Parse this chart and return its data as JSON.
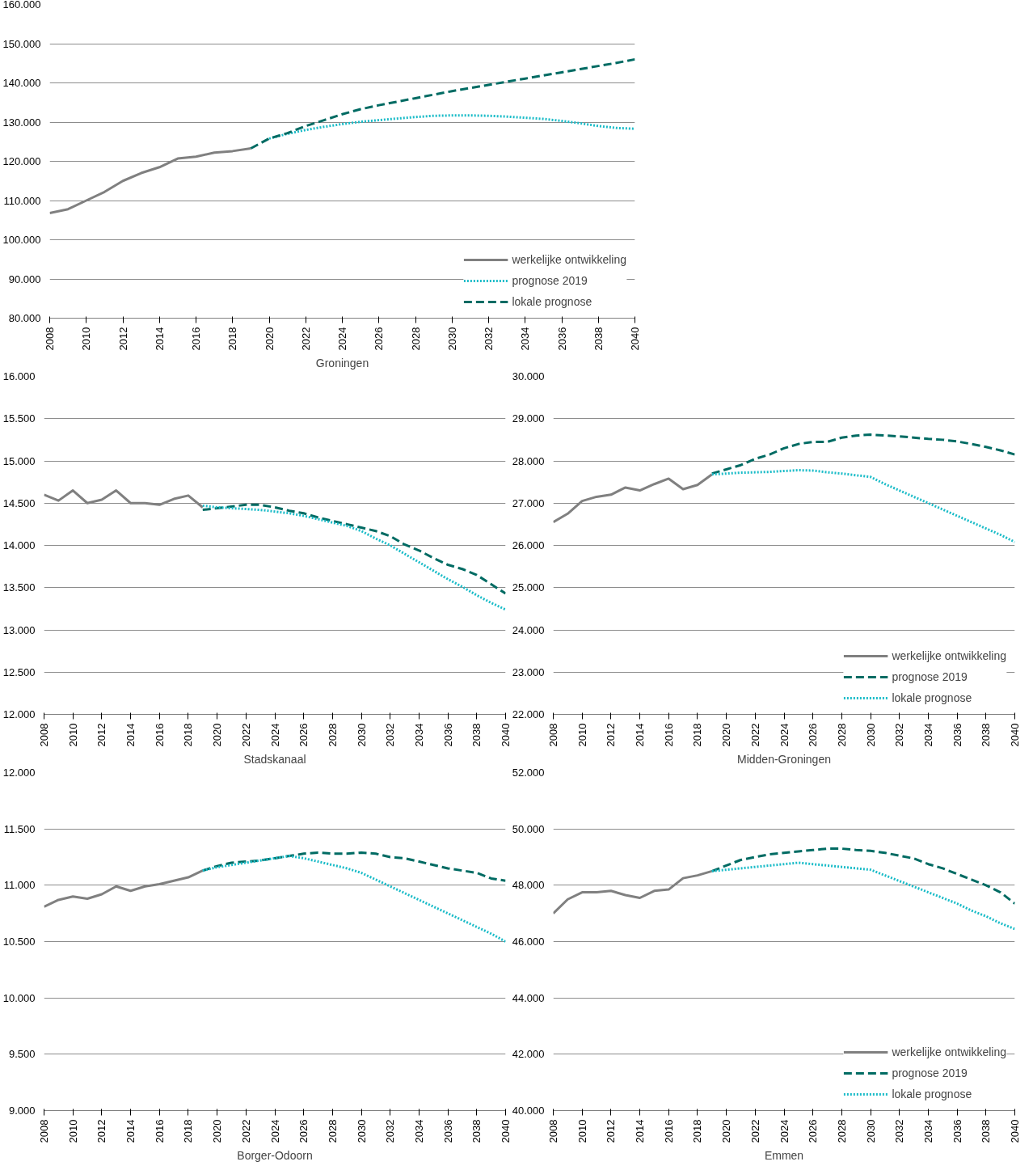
{
  "chart_data": [
    {
      "type": "line",
      "xlabel": "Groningen",
      "xlim": [
        2008,
        2040
      ],
      "xticks": [
        2008,
        2010,
        2012,
        2014,
        2016,
        2018,
        2020,
        2022,
        2024,
        2026,
        2028,
        2030,
        2032,
        2034,
        2036,
        2038,
        2040
      ],
      "ylim": [
        80000,
        160000
      ],
      "yticks": [
        {
          "value": 80000,
          "label": "80.000"
        },
        {
          "value": 90000,
          "label": "90.000"
        },
        {
          "value": 100000,
          "label": "100.000"
        },
        {
          "value": 110000,
          "label": "110.000"
        },
        {
          "value": 120000,
          "label": "120.000"
        },
        {
          "value": 130000,
          "label": "130.000"
        },
        {
          "value": 140000,
          "label": "140.000"
        },
        {
          "value": 150000,
          "label": "150.000"
        },
        {
          "value": 160000,
          "label": "160.000"
        }
      ],
      "grid": "y",
      "legend": "bottom right",
      "marker": "none",
      "series": [
        {
          "name": "werkelijke ontwikkeling",
          "color": "#808080",
          "line_style": "solid",
          "x": [
            2008,
            2009,
            2010,
            2011,
            2012,
            2013,
            2014,
            2015,
            2016,
            2017,
            2018,
            2019
          ],
          "values": [
            106800,
            107800,
            110000,
            112200,
            115000,
            117000,
            118500,
            120700,
            121200,
            122200,
            122600,
            123300
          ]
        },
        {
          "name": "prognose 2019",
          "color": "#1bbcc8",
          "line_style": "dotted",
          "x": [
            2020,
            2021,
            2022,
            2023,
            2024,
            2025,
            2026,
            2027,
            2028,
            2029,
            2030,
            2031,
            2032,
            2033,
            2034,
            2035,
            2036,
            2037,
            2038,
            2039,
            2040
          ],
          "values": [
            125800,
            127000,
            128000,
            128800,
            129500,
            130100,
            130500,
            130900,
            131300,
            131600,
            131700,
            131700,
            131600,
            131400,
            131100,
            130800,
            130300,
            129700,
            129000,
            128500,
            128300
          ]
        },
        {
          "name": "lokale prognose",
          "color": "#006b63",
          "line_style": "dashed",
          "x": [
            2019,
            2020,
            2021,
            2022,
            2023,
            2024,
            2025,
            2026,
            2027,
            2028,
            2029,
            2030,
            2031,
            2032,
            2033,
            2034,
            2035,
            2036,
            2037,
            2038,
            2039,
            2040
          ],
          "values": [
            123300,
            125800,
            127200,
            129000,
            130500,
            132000,
            133300,
            134300,
            135200,
            136100,
            137000,
            137900,
            138700,
            139500,
            140300,
            141100,
            141900,
            142700,
            143500,
            144300,
            145100,
            146000
          ]
        }
      ]
    },
    {
      "type": "line",
      "xlabel": "Stadskanaal",
      "xlim": [
        2008,
        2040
      ],
      "xticks": [
        2008,
        2010,
        2012,
        2014,
        2016,
        2018,
        2020,
        2022,
        2024,
        2026,
        2028,
        2030,
        2032,
        2034,
        2036,
        2038,
        2040
      ],
      "ylim": [
        12000,
        16000
      ],
      "yticks": [
        {
          "value": 12000,
          "label": "12.000"
        },
        {
          "value": 12500,
          "label": "12.500"
        },
        {
          "value": 13000,
          "label": "13.000"
        },
        {
          "value": 13500,
          "label": "13.500"
        },
        {
          "value": 14000,
          "label": "14.000"
        },
        {
          "value": 14500,
          "label": "14.500"
        },
        {
          "value": 15000,
          "label": "15.000"
        },
        {
          "value": 15500,
          "label": "15.500"
        },
        {
          "value": 16000,
          "label": "16.000"
        }
      ],
      "grid": "y",
      "marker": "none",
      "series": [
        {
          "color": "#808080",
          "line_style": "solid",
          "x": [
            2008,
            2009,
            2010,
            2011,
            2012,
            2013,
            2014,
            2015,
            2016,
            2017,
            2018,
            2019
          ],
          "values": [
            14600,
            14530,
            14650,
            14500,
            14540,
            14650,
            14500,
            14500,
            14480,
            14550,
            14590,
            14450
          ]
        },
        {
          "color": "#006b63",
          "line_style": "dashed",
          "x": [
            2019,
            2020,
            2021,
            2022,
            2023,
            2024,
            2025,
            2026,
            2027,
            2028,
            2029,
            2030,
            2031,
            2032,
            2033,
            2034,
            2035,
            2036,
            2037,
            2038,
            2039,
            2040
          ],
          "values": [
            14420,
            14440,
            14460,
            14480,
            14480,
            14450,
            14410,
            14380,
            14330,
            14290,
            14250,
            14210,
            14170,
            14110,
            14010,
            13940,
            13850,
            13770,
            13720,
            13650,
            13540,
            13430
          ]
        },
        {
          "color": "#1bbcc8",
          "line_style": "dotted",
          "x": [
            2019,
            2020,
            2021,
            2022,
            2023,
            2024,
            2025,
            2026,
            2027,
            2028,
            2029,
            2030,
            2031,
            2032,
            2033,
            2034,
            2035,
            2036,
            2037,
            2038,
            2039,
            2040
          ],
          "values": [
            14470,
            14450,
            14440,
            14430,
            14420,
            14400,
            14380,
            14350,
            14310,
            14270,
            14230,
            14170,
            14080,
            14000,
            13900,
            13800,
            13700,
            13600,
            13510,
            13410,
            13320,
            13240
          ]
        }
      ]
    },
    {
      "type": "line",
      "xlabel": "Midden-Groningen",
      "xlim": [
        2008,
        2040
      ],
      "xticks": [
        2008,
        2010,
        2012,
        2014,
        2016,
        2018,
        2020,
        2022,
        2024,
        2026,
        2028,
        2030,
        2032,
        2034,
        2036,
        2038,
        2040
      ],
      "ylim": [
        22000,
        30000
      ],
      "yticks": [
        {
          "value": 22000,
          "label": "22.000"
        },
        {
          "value": 23000,
          "label": "23.000"
        },
        {
          "value": 24000,
          "label": "24.000"
        },
        {
          "value": 25000,
          "label": "25.000"
        },
        {
          "value": 26000,
          "label": "26.000"
        },
        {
          "value": 27000,
          "label": "27.000"
        },
        {
          "value": 28000,
          "label": "28.000"
        },
        {
          "value": 29000,
          "label": "29.000"
        },
        {
          "value": 30000,
          "label": "30.000"
        }
      ],
      "grid": "y",
      "legend": "bottom right",
      "marker": "none",
      "series": [
        {
          "name": "werkelijke ontwikkeling",
          "color": "#808080",
          "line_style": "solid",
          "x": [
            2008,
            2009,
            2010,
            2011,
            2012,
            2013,
            2014,
            2015,
            2016,
            2017,
            2018,
            2019
          ],
          "values": [
            26550,
            26750,
            27050,
            27150,
            27200,
            27370,
            27300,
            27450,
            27580,
            27330,
            27430,
            27680
          ]
        },
        {
          "name": "prognose 2019",
          "color": "#006b63",
          "line_style": "dashed",
          "x": [
            2019,
            2020,
            2021,
            2022,
            2023,
            2024,
            2025,
            2026,
            2027,
            2028,
            2029,
            2030,
            2031,
            2032,
            2033,
            2034,
            2035,
            2036,
            2037,
            2038,
            2039,
            2040
          ],
          "values": [
            27700,
            27800,
            27900,
            28050,
            28150,
            28300,
            28400,
            28450,
            28450,
            28550,
            28600,
            28620,
            28600,
            28580,
            28550,
            28520,
            28500,
            28460,
            28400,
            28330,
            28250,
            28150
          ]
        },
        {
          "name": "lokale prognose",
          "color": "#1bbcc8",
          "line_style": "dotted",
          "x": [
            2019,
            2020,
            2021,
            2022,
            2023,
            2024,
            2025,
            2026,
            2027,
            2028,
            2029,
            2030,
            2031,
            2032,
            2033,
            2034,
            2035,
            2036,
            2037,
            2038,
            2039,
            2040
          ],
          "values": [
            27680,
            27700,
            27720,
            27730,
            27740,
            27760,
            27780,
            27770,
            27730,
            27700,
            27660,
            27620,
            27450,
            27300,
            27150,
            27000,
            26850,
            26700,
            26550,
            26400,
            26250,
            26080
          ]
        }
      ]
    },
    {
      "type": "line",
      "xlabel": "Borger-Odoorn",
      "xlim": [
        2008,
        2040
      ],
      "xticks": [
        2008,
        2010,
        2012,
        2014,
        2016,
        2018,
        2020,
        2022,
        2024,
        2026,
        2028,
        2030,
        2032,
        2034,
        2036,
        2038,
        2040
      ],
      "ylim": [
        9000,
        12000
      ],
      "yticks": [
        {
          "value": 9000,
          "label": "9.000"
        },
        {
          "value": 9500,
          "label": "9.500"
        },
        {
          "value": 10000,
          "label": "10.000"
        },
        {
          "value": 10500,
          "label": "10.500"
        },
        {
          "value": 11000,
          "label": "11.000"
        },
        {
          "value": 11500,
          "label": "11.500"
        },
        {
          "value": 12000,
          "label": "12.000"
        }
      ],
      "grid": "y",
      "marker": "none",
      "series": [
        {
          "color": "#808080",
          "line_style": "solid",
          "x": [
            2008,
            2009,
            2010,
            2011,
            2012,
            2013,
            2014,
            2015,
            2016,
            2017,
            2018,
            2019
          ],
          "values": [
            10810,
            10870,
            10900,
            10880,
            10920,
            10990,
            10950,
            10990,
            11010,
            11040,
            11070,
            11130
          ]
        },
        {
          "color": "#006b63",
          "line_style": "dashed",
          "x": [
            2019,
            2020,
            2021,
            2022,
            2023,
            2024,
            2025,
            2026,
            2027,
            2028,
            2029,
            2030,
            2031,
            2032,
            2033,
            2034,
            2035,
            2036,
            2037,
            2038,
            2039,
            2040
          ],
          "values": [
            11130,
            11170,
            11200,
            11210,
            11220,
            11240,
            11260,
            11280,
            11290,
            11280,
            11280,
            11290,
            11280,
            11250,
            11240,
            11210,
            11180,
            11150,
            11130,
            11110,
            11060,
            11040
          ]
        },
        {
          "color": "#1bbcc8",
          "line_style": "dotted",
          "x": [
            2019,
            2020,
            2021,
            2022,
            2023,
            2024,
            2025,
            2026,
            2027,
            2028,
            2029,
            2030,
            2031,
            2032,
            2033,
            2034,
            2035,
            2036,
            2037,
            2038,
            2039,
            2040
          ],
          "values": [
            11130,
            11160,
            11180,
            11200,
            11220,
            11240,
            11260,
            11240,
            11210,
            11180,
            11150,
            11110,
            11050,
            10990,
            10930,
            10870,
            10810,
            10750,
            10690,
            10630,
            10570,
            10500
          ]
        }
      ]
    },
    {
      "type": "line",
      "xlabel": "Emmen",
      "xlim": [
        2008,
        2040
      ],
      "xticks": [
        2008,
        2010,
        2012,
        2014,
        2016,
        2018,
        2020,
        2022,
        2024,
        2026,
        2028,
        2030,
        2032,
        2034,
        2036,
        2038,
        2040
      ],
      "ylim": [
        40000,
        52000
      ],
      "yticks": [
        {
          "value": 40000,
          "label": "40.000"
        },
        {
          "value": 42000,
          "label": "42.000"
        },
        {
          "value": 44000,
          "label": "44.000"
        },
        {
          "value": 46000,
          "label": "46.000"
        },
        {
          "value": 48000,
          "label": "48.000"
        },
        {
          "value": 50000,
          "label": "50.000"
        },
        {
          "value": 52000,
          "label": "52.000"
        }
      ],
      "grid": "y",
      "legend": "bottom right",
      "marker": "none",
      "series": [
        {
          "name": "werkelijke ontwikkeling",
          "color": "#808080",
          "line_style": "solid",
          "x": [
            2008,
            2009,
            2010,
            2011,
            2012,
            2013,
            2014,
            2015,
            2016,
            2017,
            2018,
            2019
          ],
          "values": [
            47000,
            47500,
            47750,
            47750,
            47800,
            47650,
            47550,
            47800,
            47850,
            48250,
            48350,
            48500
          ]
        },
        {
          "name": "prognose 2019",
          "color": "#006b63",
          "line_style": "dashed",
          "x": [
            2019,
            2020,
            2021,
            2022,
            2023,
            2024,
            2025,
            2026,
            2027,
            2028,
            2029,
            2030,
            2031,
            2032,
            2033,
            2034,
            2035,
            2036,
            2037,
            2038,
            2039,
            2040
          ],
          "values": [
            48500,
            48700,
            48900,
            49000,
            49100,
            49150,
            49200,
            49250,
            49300,
            49300,
            49250,
            49220,
            49150,
            49050,
            48950,
            48750,
            48600,
            48400,
            48200,
            48000,
            47750,
            47350
          ]
        },
        {
          "name": "lokale prognose",
          "color": "#1bbcc8",
          "line_style": "dotted",
          "x": [
            2019,
            2020,
            2021,
            2022,
            2023,
            2024,
            2025,
            2026,
            2027,
            2028,
            2029,
            2030,
            2031,
            2032,
            2033,
            2034,
            2035,
            2036,
            2037,
            2038,
            2039,
            2040
          ],
          "values": [
            48500,
            48550,
            48600,
            48650,
            48700,
            48750,
            48800,
            48750,
            48700,
            48650,
            48600,
            48550,
            48350,
            48150,
            47950,
            47750,
            47550,
            47350,
            47100,
            46900,
            46650,
            46450
          ]
        }
      ]
    }
  ]
}
